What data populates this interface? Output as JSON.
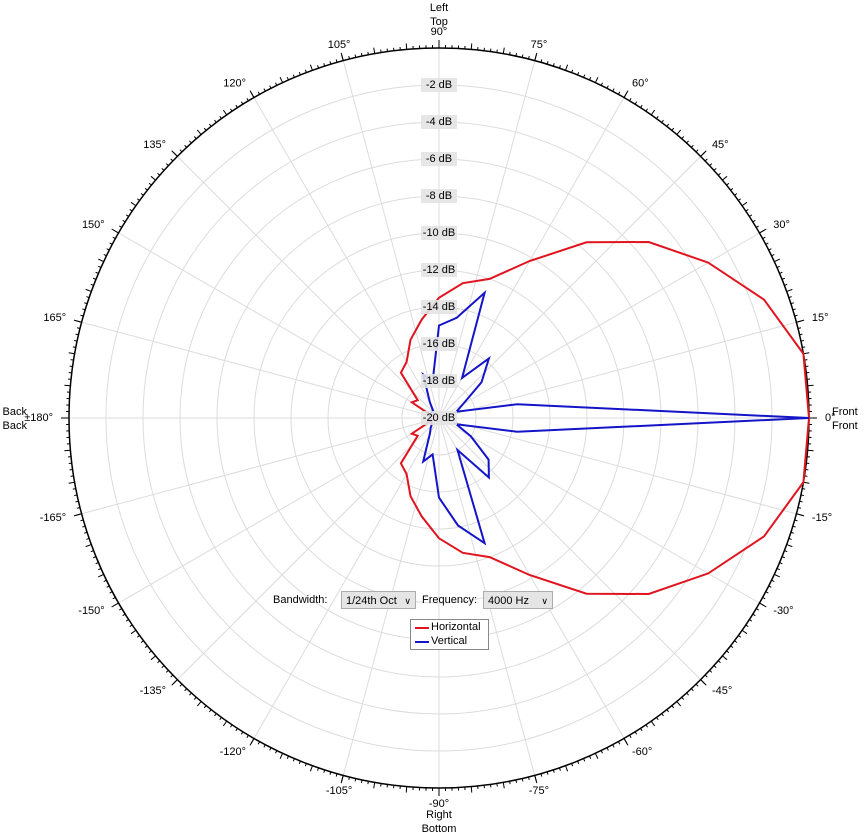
{
  "chart_data": {
    "type": "polar",
    "angles": [
      -180,
      -170,
      -160,
      -150,
      -140,
      -130,
      -120,
      -110,
      -100,
      -90,
      -80,
      -70,
      -60,
      -50,
      -40,
      -30,
      -20,
      -10,
      0,
      10,
      20,
      30,
      40,
      50,
      60,
      70,
      80,
      90,
      100,
      110,
      120,
      130,
      140,
      150,
      160,
      170,
      180
    ],
    "series": [
      {
        "name": "Horizontal",
        "color": "#e0141e",
        "values": [
          -19.8,
          -19.8,
          -19.5,
          -18.3,
          -18.5,
          -16.8,
          -16.5,
          -15.5,
          -14.6,
          -13.5,
          -12.6,
          -12,
          -10.2,
          -7.6,
          -5.2,
          -3.2,
          -1.3,
          0,
          0,
          0,
          -1.3,
          -3.2,
          -5.2,
          -7.6,
          -10.2,
          -12,
          -12.6,
          -13.5,
          -14.6,
          -15.5,
          -16.5,
          -16.8,
          -18.5,
          -18.3,
          -19.5,
          -19.8,
          -19.8
        ]
      },
      {
        "name": "Vertical",
        "color": "#1414c8",
        "values": [
          -19.5,
          -19.5,
          -19.5,
          -19.5,
          -19.5,
          -19.3,
          -19,
          -17.5,
          -18,
          -15.7,
          -14.1,
          -12.8,
          -18,
          -15.8,
          -16.5,
          -18,
          -19,
          -15.7,
          0,
          -15.7,
          -19,
          -18.5,
          -17,
          -15.8,
          -17.5,
          -12.8,
          -14.5,
          -15,
          -18,
          -17.5,
          -19,
          -19.5,
          -19.5,
          -19.5,
          -19.5,
          -19.5,
          -19.5
        ]
      }
    ],
    "rlim": [
      -20,
      0
    ],
    "rticks": [
      {
        "value": -20,
        "label": "-20 dB"
      },
      {
        "value": -18,
        "label": "-18 dB"
      },
      {
        "value": -16,
        "label": "-16 dB"
      },
      {
        "value": -14,
        "label": "-14 dB"
      },
      {
        "value": -12,
        "label": "-12 dB"
      },
      {
        "value": -10,
        "label": "-10 dB"
      },
      {
        "value": -8,
        "label": "-8 dB"
      },
      {
        "value": -6,
        "label": "-6 dB"
      },
      {
        "value": -4,
        "label": "-4 dB"
      },
      {
        "value": -2,
        "label": "-2 dB"
      }
    ],
    "thetaticks": [
      {
        "value": 0,
        "label": "0°"
      },
      {
        "value": 15,
        "label": "15°"
      },
      {
        "value": 30,
        "label": "30°"
      },
      {
        "value": 45,
        "label": "45°"
      },
      {
        "value": 60,
        "label": "60°"
      },
      {
        "value": 75,
        "label": "75°"
      },
      {
        "value": 90,
        "label": "90°"
      },
      {
        "value": 105,
        "label": "105°"
      },
      {
        "value": 120,
        "label": "120°"
      },
      {
        "value": 135,
        "label": "135°"
      },
      {
        "value": 150,
        "label": "150°"
      },
      {
        "value": 165,
        "label": "165°"
      },
      {
        "value": 180,
        "label": "±180°"
      },
      {
        "value": -165,
        "label": "-165°"
      },
      {
        "value": -150,
        "label": "-150°"
      },
      {
        "value": -135,
        "label": "-135°"
      },
      {
        "value": -120,
        "label": "-120°"
      },
      {
        "value": -105,
        "label": "-105°"
      },
      {
        "value": -90,
        "label": "-90°"
      },
      {
        "value": -75,
        "label": "-75°"
      },
      {
        "value": -60,
        "label": "-60°"
      },
      {
        "value": -45,
        "label": "-45°"
      },
      {
        "value": -30,
        "label": "-30°"
      },
      {
        "value": -15,
        "label": "-15°"
      }
    ],
    "direction_labels": {
      "right": [
        "Front",
        "Front"
      ],
      "top": [
        "Left",
        "Top"
      ],
      "left": [
        "Back",
        "Back"
      ],
      "bottom": [
        "Right",
        "Bottom"
      ]
    },
    "grid": true
  },
  "controls": {
    "bandwidth_label": "Bandwidth:",
    "bandwidth_value": "1/24th Oct",
    "frequency_label": "Frequency:",
    "frequency_value": "4000 Hz"
  }
}
